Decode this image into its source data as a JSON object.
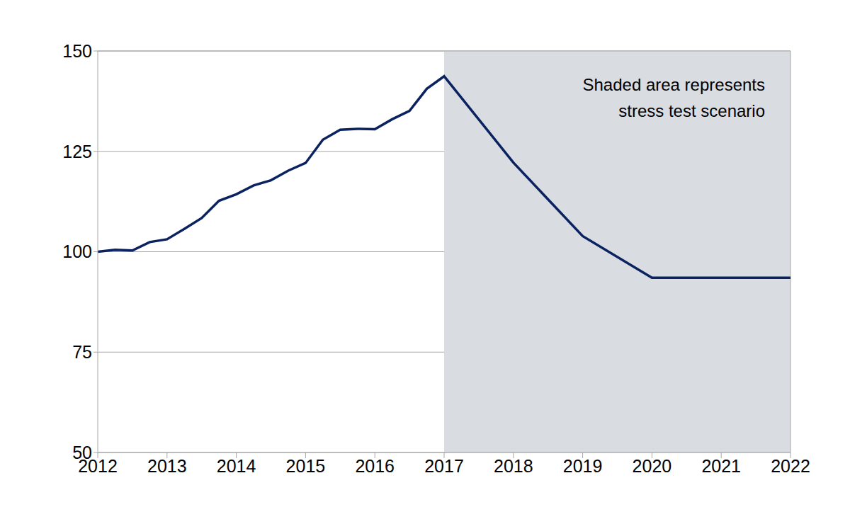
{
  "chart_data": {
    "type": "line",
    "x": [
      2012,
      2012.25,
      2012.5,
      2012.75,
      2013,
      2013.25,
      2013.5,
      2013.75,
      2014,
      2014.25,
      2014.5,
      2014.75,
      2015,
      2015.25,
      2015.5,
      2015.75,
      2016,
      2016.25,
      2016.5,
      2016.75,
      2017,
      2018,
      2019,
      2020,
      2021,
      2022
    ],
    "values": [
      100,
      100.5,
      100.3,
      102.4,
      103.1,
      105.7,
      108.4,
      112.7,
      114.3,
      116.5,
      117.8,
      120.2,
      122.1,
      127.9,
      130.4,
      130.6,
      130.5,
      133.0,
      135.1,
      140.6,
      143.7,
      122.2,
      103.9,
      93.5,
      93.5,
      93.5
    ],
    "color": "#0b2260",
    "xlim": [
      2012,
      2022
    ],
    "xticks": [
      2012,
      2013,
      2014,
      2015,
      2016,
      2017,
      2018,
      2019,
      2020,
      2021,
      2022
    ],
    "ylim": [
      50,
      150
    ],
    "yticks": [
      50,
      75,
      100,
      125,
      150
    ],
    "grid": true,
    "shaded_region": [
      2017,
      2022
    ],
    "annotation": [
      "Shaded area represents",
      "stress test scenario"
    ]
  }
}
